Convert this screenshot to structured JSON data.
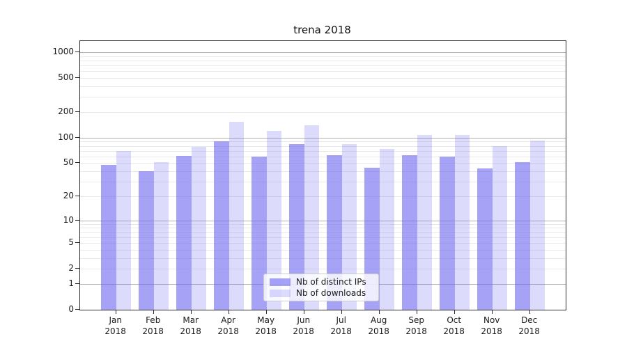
{
  "chart_data": {
    "type": "bar",
    "title": "trena 2018",
    "categories": [
      "Jan",
      "Feb",
      "Mar",
      "Apr",
      "May",
      "Jun",
      "Jul",
      "Aug",
      "Sep",
      "Oct",
      "Nov",
      "Dec"
    ],
    "category_sublabel": "2018",
    "series": [
      {
        "name": "Nb of distinct IPs",
        "color": "#6b65f0",
        "alpha": 0.6,
        "values": [
          48,
          40,
          61,
          90,
          60,
          84,
          62,
          44,
          62,
          60,
          43,
          51
        ]
      },
      {
        "name": "Nb of downloads",
        "color": "#6b65f0",
        "alpha": 0.23,
        "values": [
          70,
          51,
          78,
          155,
          120,
          140,
          84,
          73,
          107,
          107,
          80,
          92
        ]
      }
    ],
    "y_axis": {
      "scale": "log10(value+1)",
      "ticks": [
        0,
        1,
        2,
        5,
        10,
        20,
        50,
        100,
        200,
        500,
        1000
      ],
      "range_top_value": 1350
    },
    "grid": {
      "major_lines": [
        1,
        10,
        100,
        1000
      ],
      "minor_lines": [
        2,
        3,
        4,
        5,
        6,
        7,
        8,
        9,
        20,
        30,
        40,
        50,
        60,
        70,
        80,
        90,
        200,
        300,
        400,
        500,
        600,
        700,
        800,
        900
      ],
      "major_color": "#b0b0b0",
      "minor_color": "#e9e9e9"
    },
    "legend": {
      "position": "bottom-center",
      "entries": [
        "Nb of distinct IPs",
        "Nb of downloads"
      ]
    },
    "frame_color": "#2b2b2b",
    "background_color": "#ffffff"
  }
}
